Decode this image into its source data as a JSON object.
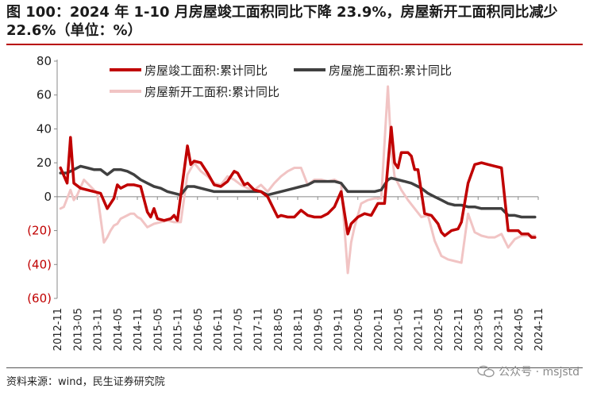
{
  "title": "图 100：2024 年 1-10 月房屋竣工面积同比下降 23.9%，房屋新开工面积同比减少 22.6%（单位：%）",
  "source": "资料来源：wind，民生证券研究院",
  "watermark": "公众号 · msjstd",
  "colors": {
    "accent": "#b80000"
  },
  "chart_data": {
    "type": "line",
    "ylim": [
      -60,
      80
    ],
    "yticks": [
      -60,
      -40,
      -20,
      0,
      20,
      40,
      60,
      80
    ],
    "ytick_labels": [
      "(60)",
      "(40)",
      "(20)",
      "0",
      "20",
      "40",
      "60",
      "80"
    ],
    "x_range": [
      "2012-11",
      "2024-11"
    ],
    "x_labels": [
      "2012-11",
      "2013-05",
      "2013-11",
      "2014-05",
      "2014-11",
      "2015-05",
      "2015-11",
      "2016-05",
      "2016-11",
      "2017-05",
      "2017-11",
      "2018-05",
      "2018-11",
      "2019-05",
      "2019-11",
      "2020-05",
      "2020-11",
      "2021-05",
      "2021-11",
      "2022-05",
      "2022-11",
      "2023-05",
      "2023-11",
      "2024-05",
      "2024-11"
    ],
    "legend_placement": "top",
    "series": [
      {
        "name": "房屋竣工面积:累计同比",
        "color": "#c00000",
        "width": 3.5,
        "points": [
          [
            "2012-12",
            17
          ],
          [
            "2013-02",
            8
          ],
          [
            "2013-03",
            35
          ],
          [
            "2013-04",
            8
          ],
          [
            "2013-06",
            5
          ],
          [
            "2013-08",
            4
          ],
          [
            "2013-10",
            3
          ],
          [
            "2013-12",
            2
          ],
          [
            "2014-02",
            -7
          ],
          [
            "2014-04",
            -1
          ],
          [
            "2014-05",
            7
          ],
          [
            "2014-06",
            5
          ],
          [
            "2014-08",
            7
          ],
          [
            "2014-10",
            7
          ],
          [
            "2014-12",
            6
          ],
          [
            "2015-02",
            -9
          ],
          [
            "2015-03",
            -12
          ],
          [
            "2015-04",
            -7
          ],
          [
            "2015-05",
            -13
          ],
          [
            "2015-07",
            -14
          ],
          [
            "2015-09",
            -13
          ],
          [
            "2015-10",
            -11
          ],
          [
            "2015-11",
            -14
          ],
          [
            "2016-02",
            30
          ],
          [
            "2016-03",
            19
          ],
          [
            "2016-04",
            21
          ],
          [
            "2016-06",
            20
          ],
          [
            "2016-08",
            14
          ],
          [
            "2016-10",
            7
          ],
          [
            "2016-12",
            6
          ],
          [
            "2017-02",
            9
          ],
          [
            "2017-04",
            15
          ],
          [
            "2017-05",
            14
          ],
          [
            "2017-07",
            7
          ],
          [
            "2017-08",
            8
          ],
          [
            "2017-10",
            4
          ],
          [
            "2017-12",
            3
          ],
          [
            "2018-02",
            0
          ],
          [
            "2018-04",
            -8
          ],
          [
            "2018-05",
            -12
          ],
          [
            "2018-06",
            -11
          ],
          [
            "2018-08",
            -12
          ],
          [
            "2018-10",
            -12
          ],
          [
            "2018-12",
            -8
          ],
          [
            "2019-02",
            -11
          ],
          [
            "2019-04",
            -12
          ],
          [
            "2019-06",
            -12
          ],
          [
            "2019-08",
            -10
          ],
          [
            "2019-10",
            -6
          ],
          [
            "2019-12",
            3
          ],
          [
            "2020-02",
            -22
          ],
          [
            "2020-03",
            -16
          ],
          [
            "2020-05",
            -12
          ],
          [
            "2020-07",
            -10
          ],
          [
            "2020-09",
            -11
          ],
          [
            "2020-11",
            -4
          ],
          [
            "2021-01",
            -4
          ],
          [
            "2021-03",
            41
          ],
          [
            "2021-04",
            20
          ],
          [
            "2021-05",
            17
          ],
          [
            "2021-06",
            26
          ],
          [
            "2021-08",
            26
          ],
          [
            "2021-09",
            24
          ],
          [
            "2021-10",
            16
          ],
          [
            "2021-11",
            16
          ],
          [
            "2022-01",
            -10
          ],
          [
            "2022-03",
            -11
          ],
          [
            "2022-05",
            -16
          ],
          [
            "2022-06",
            -21
          ],
          [
            "2022-07",
            -23
          ],
          [
            "2022-09",
            -20
          ],
          [
            "2022-11",
            -19
          ],
          [
            "2022-12",
            -15
          ],
          [
            "2023-02",
            8
          ],
          [
            "2023-04",
            19
          ],
          [
            "2023-06",
            20
          ],
          [
            "2023-08",
            19
          ],
          [
            "2023-10",
            18
          ],
          [
            "2023-12",
            17
          ],
          [
            "2024-02",
            -20
          ],
          [
            "2024-04",
            -20
          ],
          [
            "2024-05",
            -20
          ],
          [
            "2024-06",
            -22
          ],
          [
            "2024-08",
            -22
          ],
          [
            "2024-09",
            -24
          ],
          [
            "2024-10",
            -24
          ]
        ]
      },
      {
        "name": "房屋施工面积:累计同比",
        "color": "#404040",
        "width": 3.5,
        "points": [
          [
            "2012-12",
            14
          ],
          [
            "2013-02",
            14
          ],
          [
            "2013-04",
            16
          ],
          [
            "2013-06",
            18
          ],
          [
            "2013-08",
            17
          ],
          [
            "2013-10",
            16
          ],
          [
            "2013-12",
            16
          ],
          [
            "2014-02",
            13
          ],
          [
            "2014-04",
            16
          ],
          [
            "2014-06",
            16
          ],
          [
            "2014-08",
            15
          ],
          [
            "2014-10",
            13
          ],
          [
            "2014-12",
            10
          ],
          [
            "2015-02",
            8
          ],
          [
            "2015-04",
            6
          ],
          [
            "2015-06",
            5
          ],
          [
            "2015-08",
            3
          ],
          [
            "2015-10",
            2
          ],
          [
            "2015-12",
            1
          ],
          [
            "2016-02",
            6
          ],
          [
            "2016-04",
            6
          ],
          [
            "2016-06",
            5
          ],
          [
            "2016-08",
            4
          ],
          [
            "2016-10",
            3
          ],
          [
            "2016-12",
            3
          ],
          [
            "2017-02",
            3
          ],
          [
            "2017-04",
            3
          ],
          [
            "2017-06",
            3
          ],
          [
            "2017-08",
            3
          ],
          [
            "2017-10",
            3
          ],
          [
            "2017-12",
            3
          ],
          [
            "2018-02",
            1
          ],
          [
            "2018-04",
            2
          ],
          [
            "2018-06",
            3
          ],
          [
            "2018-08",
            4
          ],
          [
            "2018-10",
            5
          ],
          [
            "2018-12",
            6
          ],
          [
            "2019-02",
            7
          ],
          [
            "2019-04",
            9
          ],
          [
            "2019-06",
            9
          ],
          [
            "2019-08",
            9
          ],
          [
            "2019-10",
            9
          ],
          [
            "2019-12",
            8
          ],
          [
            "2020-02",
            3
          ],
          [
            "2020-04",
            3
          ],
          [
            "2020-06",
            3
          ],
          [
            "2020-08",
            3
          ],
          [
            "2020-10",
            3
          ],
          [
            "2020-12",
            4
          ],
          [
            "2021-02",
            10
          ],
          [
            "2021-03",
            11
          ],
          [
            "2021-05",
            10
          ],
          [
            "2021-07",
            9
          ],
          [
            "2021-09",
            8
          ],
          [
            "2021-11",
            6
          ],
          [
            "2021-12",
            5
          ],
          [
            "2022-02",
            2
          ],
          [
            "2022-04",
            0
          ],
          [
            "2022-06",
            -2
          ],
          [
            "2022-08",
            -4
          ],
          [
            "2022-10",
            -5
          ],
          [
            "2022-12",
            -5
          ],
          [
            "2023-02",
            -6
          ],
          [
            "2023-04",
            -6
          ],
          [
            "2023-06",
            -7
          ],
          [
            "2023-08",
            -7
          ],
          [
            "2023-10",
            -7
          ],
          [
            "2023-12",
            -7
          ],
          [
            "2024-02",
            -11
          ],
          [
            "2024-04",
            -11
          ],
          [
            "2024-06",
            -12
          ],
          [
            "2024-08",
            -12
          ],
          [
            "2024-10",
            -12
          ]
        ]
      },
      {
        "name": "房屋新开工面积:累计同比",
        "color": "#f1c4c4",
        "width": 3,
        "points": [
          [
            "2012-12",
            -7
          ],
          [
            "2013-01",
            -6
          ],
          [
            "2013-03",
            4
          ],
          [
            "2013-04",
            -2
          ],
          [
            "2013-05",
            1
          ],
          [
            "2013-07",
            10
          ],
          [
            "2013-09",
            6
          ],
          [
            "2013-11",
            2
          ],
          [
            "2014-01",
            -27
          ],
          [
            "2014-02",
            -24
          ],
          [
            "2014-03",
            -20
          ],
          [
            "2014-04",
            -17
          ],
          [
            "2014-05",
            -16
          ],
          [
            "2014-06",
            -13
          ],
          [
            "2014-08",
            -11
          ],
          [
            "2014-09",
            -10
          ],
          [
            "2014-10",
            -10
          ],
          [
            "2014-11",
            -12
          ],
          [
            "2014-12",
            -13
          ],
          [
            "2015-02",
            -18
          ],
          [
            "2015-04",
            -16
          ],
          [
            "2015-06",
            -15
          ],
          [
            "2015-08",
            -14
          ],
          [
            "2015-10",
            -15
          ],
          [
            "2015-12",
            -15
          ],
          [
            "2016-02",
            13
          ],
          [
            "2016-04",
            20
          ],
          [
            "2016-06",
            15
          ],
          [
            "2016-08",
            12
          ],
          [
            "2016-10",
            8
          ],
          [
            "2016-12",
            7
          ],
          [
            "2017-02",
            12
          ],
          [
            "2017-04",
            10
          ],
          [
            "2017-06",
            7
          ],
          [
            "2017-08",
            5
          ],
          [
            "2017-10",
            4
          ],
          [
            "2017-12",
            7
          ],
          [
            "2018-02",
            3
          ],
          [
            "2018-04",
            8
          ],
          [
            "2018-06",
            12
          ],
          [
            "2018-08",
            15
          ],
          [
            "2018-10",
            17
          ],
          [
            "2018-12",
            17
          ],
          [
            "2019-02",
            7
          ],
          [
            "2019-04",
            10
          ],
          [
            "2019-06",
            10
          ],
          [
            "2019-08",
            9
          ],
          [
            "2019-10",
            10
          ],
          [
            "2019-12",
            8
          ],
          [
            "2020-02",
            -45
          ],
          [
            "2020-03",
            -27
          ],
          [
            "2020-04",
            -18
          ],
          [
            "2020-06",
            -4
          ],
          [
            "2020-08",
            -2
          ],
          [
            "2020-10",
            -1
          ],
          [
            "2020-12",
            -1
          ],
          [
            "2021-02",
            65
          ],
          [
            "2021-03",
            28
          ],
          [
            "2021-04",
            12
          ],
          [
            "2021-06",
            4
          ],
          [
            "2021-08",
            -2
          ],
          [
            "2021-10",
            -7
          ],
          [
            "2021-12",
            -12
          ],
          [
            "2022-02",
            -11
          ],
          [
            "2022-04",
            -26
          ],
          [
            "2022-06",
            -35
          ],
          [
            "2022-08",
            -37
          ],
          [
            "2022-10",
            -38
          ],
          [
            "2022-12",
            -39
          ],
          [
            "2023-02",
            -10
          ],
          [
            "2023-04",
            -21
          ],
          [
            "2023-06",
            -23
          ],
          [
            "2023-08",
            -24
          ],
          [
            "2023-10",
            -24
          ],
          [
            "2023-12",
            -22
          ],
          [
            "2024-02",
            -30
          ],
          [
            "2024-04",
            -25
          ],
          [
            "2024-06",
            -23
          ],
          [
            "2024-08",
            -23
          ],
          [
            "2024-10",
            -23
          ]
        ]
      }
    ]
  }
}
